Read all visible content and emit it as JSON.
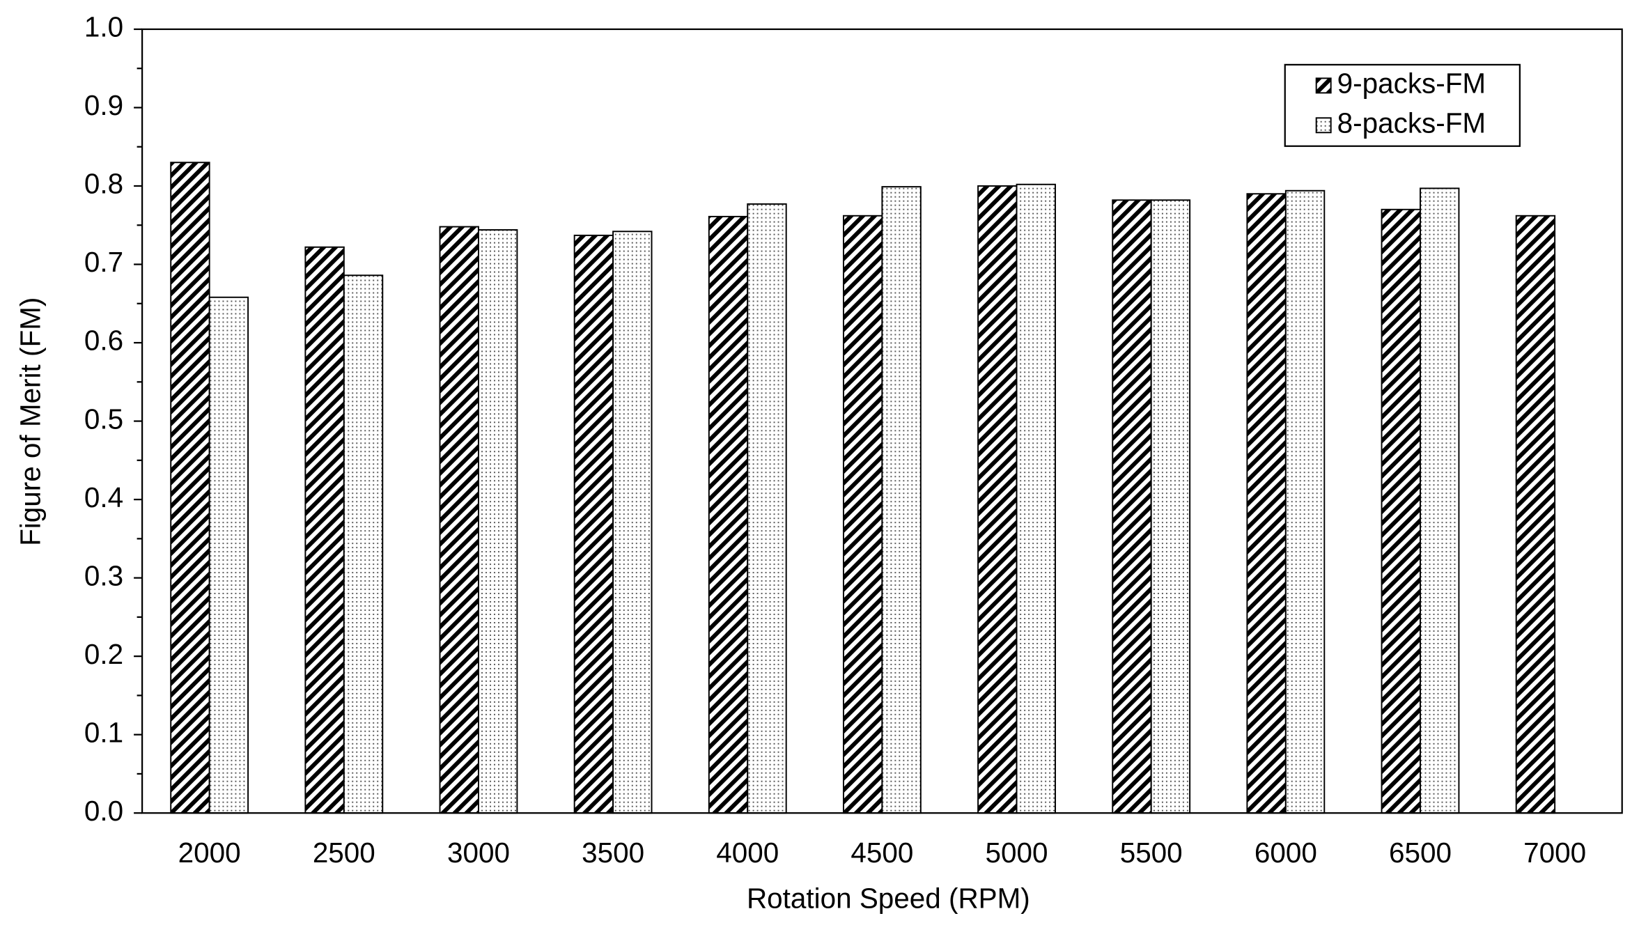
{
  "chart_data": {
    "type": "bar",
    "x_label": "Rotation Speed (RPM)",
    "y_label": "Figure of Merit (FM)",
    "categories": [
      "2000",
      "2500",
      "3000",
      "3500",
      "4000",
      "4500",
      "5000",
      "5500",
      "6000",
      "6500",
      "7000"
    ],
    "series": [
      {
        "name": "9-packs-FM",
        "color": "#000000",
        "pattern": "hatch",
        "values": [
          0.83,
          0.722,
          0.748,
          0.737,
          0.761,
          0.762,
          0.8,
          0.782,
          0.79,
          0.77,
          0.762
        ]
      },
      {
        "name": "8-packs-FM",
        "color": "#000000",
        "pattern": "dots",
        "values": [
          0.658,
          0.686,
          0.744,
          0.742,
          0.777,
          0.799,
          0.802,
          0.782,
          0.794,
          0.797,
          null
        ]
      }
    ],
    "ylim": [
      0,
      1
    ],
    "yticks": [
      {
        "value": 0,
        "label": "0.0"
      },
      0.1,
      0.2,
      0.3,
      0.4,
      0.5,
      0.6,
      0.7,
      0.8,
      0.9,
      {
        "value": 1,
        "label": "1.0"
      }
    ],
    "grid": false,
    "legend": "top-right"
  }
}
